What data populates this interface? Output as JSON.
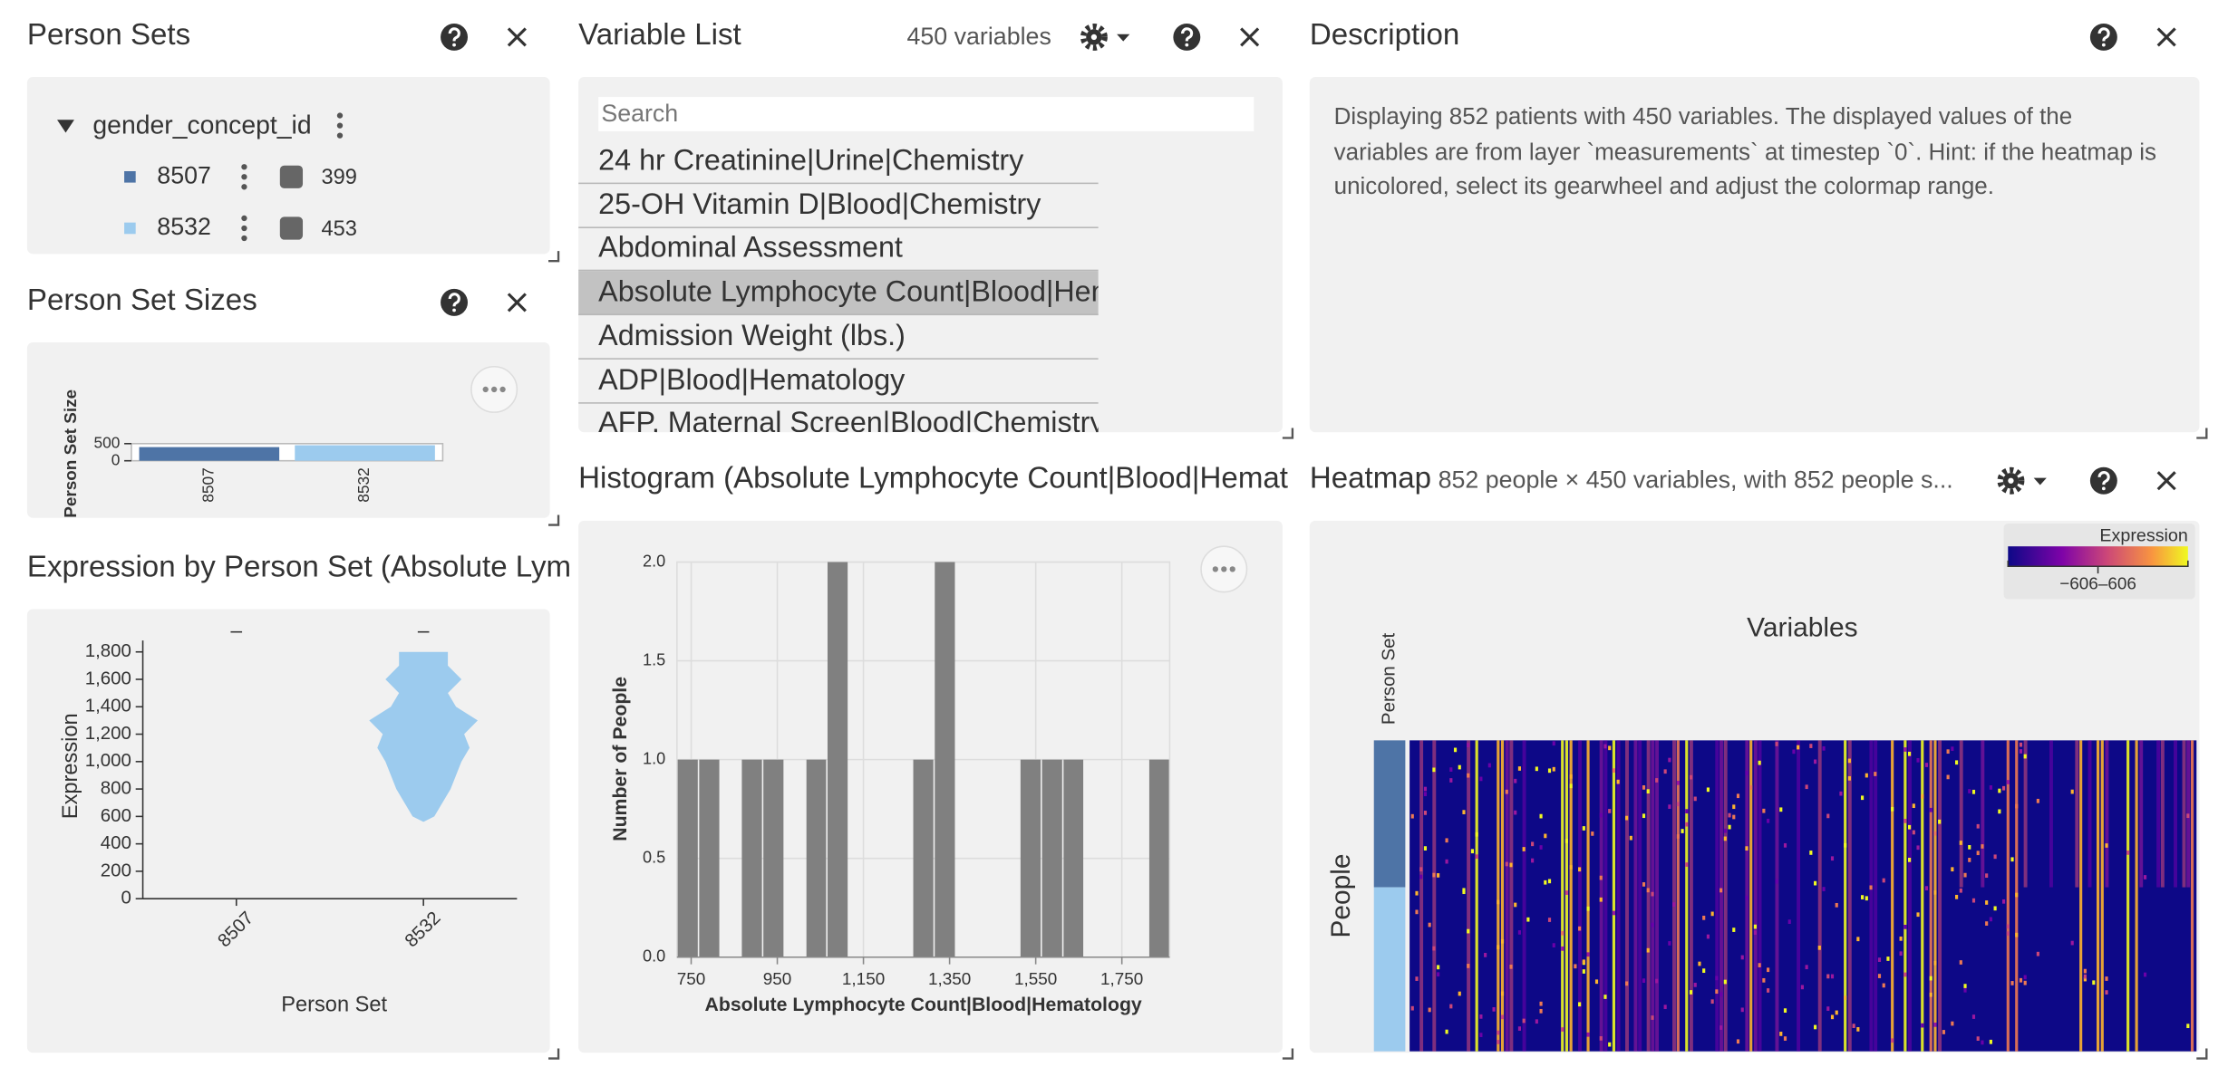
{
  "person_sets": {
    "title": "Person Sets",
    "group": "gender_concept_id",
    "sets": [
      {
        "name": "8507",
        "color": "#4e74a6",
        "count": 399
      },
      {
        "name": "8532",
        "color": "#9ccbee",
        "count": 453
      }
    ]
  },
  "person_set_sizes": {
    "title": "Person Set Sizes",
    "chart": {
      "type": "bar",
      "y_label": "Person Set Size",
      "categories": [
        "8507",
        "8532"
      ],
      "values": [
        399,
        453
      ],
      "colors": [
        "#4e74a6",
        "#9ccbee"
      ],
      "ylim": [
        0,
        500
      ],
      "yticks": [
        0,
        500
      ]
    }
  },
  "expression": {
    "title": "Expression by Person Set (Absolute Lym",
    "chart": {
      "type": "violin",
      "x_label": "Person Set",
      "y_label": "Expression",
      "categories": [
        "8507",
        "8532"
      ],
      "colors": [
        "#4e74a6",
        "#9ccbee"
      ],
      "ylim": [
        0,
        1800
      ],
      "yticks": [
        0,
        200,
        400,
        600,
        800,
        {
          "value": 1000,
          "label": "1,000"
        },
        {
          "value": 1200,
          "label": "1,200"
        },
        {
          "value": 1400,
          "label": "1,400"
        },
        {
          "value": 1600,
          "label": "1,600"
        },
        {
          "value": 1800,
          "label": "1,800"
        }
      ],
      "violins": [
        null,
        {
          "y": [
            560,
            600,
            700,
            800,
            900,
            1000,
            1100,
            1200,
            1300,
            1400,
            1500,
            1600,
            1700,
            1800
          ],
          "width": [
            0,
            0.2,
            0.35,
            0.5,
            0.6,
            0.7,
            0.85,
            0.75,
            1.0,
            0.6,
            0.45,
            0.7,
            0.45,
            0.45
          ]
        }
      ]
    }
  },
  "variable_list": {
    "title": "Variable List",
    "count_label": "450 variables",
    "search_placeholder": "Search",
    "selected": 3,
    "items": [
      "24 hr Creatinine|Urine|Chemistry",
      "25-OH Vitamin D|Blood|Chemistry",
      "Abdominal Assessment",
      "Absolute Lymphocyte Count|Blood|Hematology",
      "Admission Weight (lbs.)",
      "ADP|Blood|Hematology",
      "AFP, Maternal Screen|Blood|Chemistry"
    ]
  },
  "description": {
    "title": "Description",
    "text": "Displaying 852 patients with 450 variables. The displayed values of the variables are from layer `measurements` at timestep `0`. Hint: if the heatmap is unicolored, select its gearwheel and adjust the colormap range."
  },
  "histogram": {
    "title": "Histogram (Absolute Lymphocyte Count|Blood|Hemat",
    "chart": {
      "type": "histogram",
      "x_label": "Absolute Lymphocyte Count|Blood|Hematology",
      "y_label": "Number of People",
      "color": "#808080",
      "grid": true,
      "bins": [
        717,
        767,
        817,
        866,
        916,
        966,
        1016,
        1065,
        1115,
        1165,
        1215,
        1264,
        1314,
        1364,
        1414,
        1463,
        1513,
        1563,
        1613,
        1662,
        1712,
        1762,
        1812,
        1861
      ],
      "counts": [
        1,
        1,
        0,
        1,
        1,
        0,
        1,
        2,
        0,
        0,
        0,
        1,
        2,
        0,
        0,
        0,
        1,
        1,
        1,
        0,
        0,
        0,
        1
      ],
      "xlim": [
        717,
        1861
      ],
      "xticks": [
        750,
        950,
        {
          "value": 1150,
          "label": "1,150"
        },
        {
          "value": 1350,
          "label": "1,350"
        },
        {
          "value": 1550,
          "label": "1,550"
        },
        {
          "value": 1750,
          "label": "1,750"
        }
      ],
      "ylim": [
        0,
        2
      ],
      "yticks": [
        {
          "value": 0,
          "label": "0.0"
        },
        0.5,
        {
          "value": 1,
          "label": "1.0"
        },
        1.5,
        {
          "value": 2,
          "label": "2.0"
        }
      ]
    }
  },
  "heatmap": {
    "title": "Heatmap",
    "subtitle": "852 people × 450 variables, with 852 people s...",
    "legend_title": "Expression",
    "legend_range": "−606–606",
    "x_label": "Variables",
    "y_label": "People",
    "track_label": "Person Set"
  }
}
